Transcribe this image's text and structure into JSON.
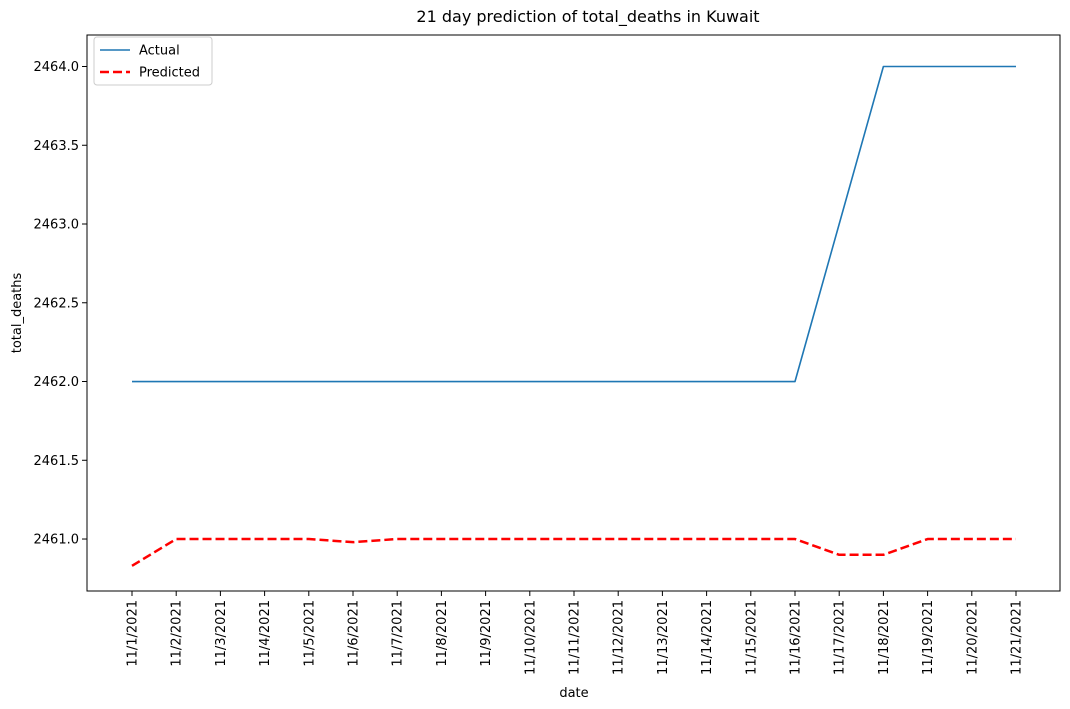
{
  "chart_data": {
    "type": "line",
    "title": "21 day prediction of total_deaths in Kuwait",
    "xlabel": "date",
    "ylabel": "total_deaths",
    "categories": [
      "11/1/2021",
      "11/2/2021",
      "11/3/2021",
      "11/4/2021",
      "11/5/2021",
      "11/6/2021",
      "11/7/2021",
      "11/8/2021",
      "11/9/2021",
      "11/10/2021",
      "11/11/2021",
      "11/12/2021",
      "11/13/2021",
      "11/14/2021",
      "11/15/2021",
      "11/16/2021",
      "11/17/2021",
      "11/18/2021",
      "11/19/2021",
      "11/20/2021",
      "11/21/2021"
    ],
    "y_ticks": [
      "2461.0",
      "2461.5",
      "2462.0",
      "2462.5",
      "2463.0",
      "2463.5",
      "2464.0"
    ],
    "ylim": [
      2460.67,
      2464.2
    ],
    "series": [
      {
        "name": "Actual",
        "color": "#1f77b4",
        "style": "solid",
        "values": [
          2462,
          2462,
          2462,
          2462,
          2462,
          2462,
          2462,
          2462,
          2462,
          2462,
          2462,
          2462,
          2462,
          2462,
          2462,
          2462,
          2463,
          2464,
          2464,
          2464,
          2464
        ]
      },
      {
        "name": "Predicted",
        "color": "#ff0000",
        "style": "dashed",
        "values": [
          2460.83,
          2461,
          2461,
          2461,
          2461,
          2460.98,
          2461,
          2461,
          2461,
          2461,
          2461,
          2461,
          2461,
          2461,
          2461,
          2461,
          2460.9,
          2460.9,
          2461,
          2461,
          2461
        ]
      }
    ],
    "grid": false,
    "legend_position": "top-left"
  }
}
